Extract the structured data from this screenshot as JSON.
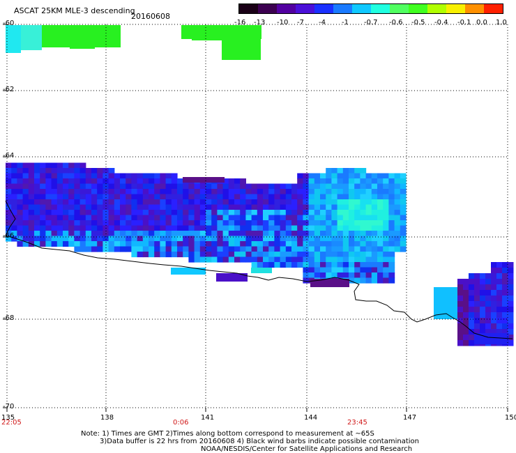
{
  "title": "ASCAT 25KM MLE-3 descending",
  "date": "20160608",
  "colorbar": {
    "labels": [
      "-16",
      "-13",
      "-10",
      "-7",
      "-4",
      "-1",
      "-0.7",
      "-0.6",
      "-0.5",
      "-0.4",
      "-0.1",
      "0.0",
      "1.0"
    ],
    "colors": [
      "#1a0016",
      "#3c0050",
      "#5200a0",
      "#4a10d8",
      "#1a30ff",
      "#1a7aff",
      "#10c8ff",
      "#20ffe0",
      "#50ff60",
      "#40ff20",
      "#b0ff00",
      "#f8f000",
      "#ff9000",
      "#ff2000"
    ]
  },
  "lat_labels": [
    "-60",
    "-62",
    "-64",
    "-66",
    "-68",
    "-70"
  ],
  "lon_labels": [
    "135",
    "138",
    "141",
    "144",
    "147",
    "150"
  ],
  "time_labels": [
    "22:05",
    "0:06",
    "23:45"
  ],
  "notes": {
    "line1": "Note: 1) Times are GMT 2)Times along bottom correspond to measurement at ~65S",
    "line2": "3)Data buffer is 22 hrs from 20160608 4) Black wind barbs indicate possible contamination",
    "line3": "NOAA/NESDIS/Center for Satellite Applications and Research"
  }
}
